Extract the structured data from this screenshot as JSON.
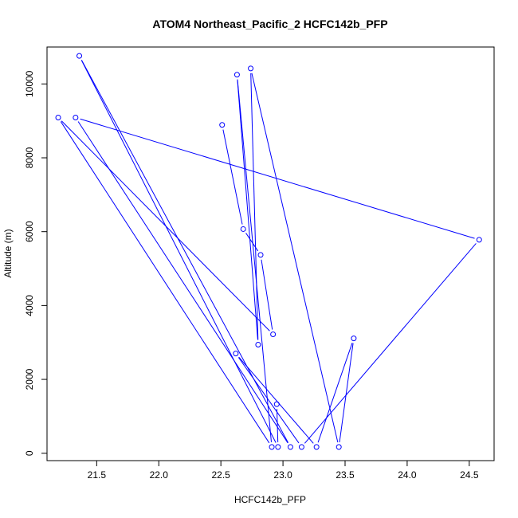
{
  "chart_data": {
    "type": "line",
    "title": "ATOM4 Northeast_Pacific_2 HCFC142b_PFP",
    "xlabel": "HCFC142b_PFP",
    "ylabel": "Altitude (m)",
    "xlim": [
      21.1,
      24.7
    ],
    "ylim": [
      -200,
      11000
    ],
    "x_ticks": [
      21.5,
      22.0,
      22.5,
      23.0,
      23.5,
      24.0,
      24.5
    ],
    "x_tick_labels": [
      "21.5",
      "22.0",
      "22.5",
      "23.0",
      "23.5",
      "24.0",
      "24.5"
    ],
    "y_ticks": [
      0,
      2000,
      4000,
      6000,
      8000,
      10000
    ],
    "y_tick_labels": [
      "0",
      "2000",
      "4000",
      "6000",
      "8000",
      "10000"
    ],
    "grid": false,
    "series": [
      {
        "color": "#0000ff",
        "marker": "open-circle",
        "points": [
          {
            "x": 22.51,
            "y": 8890
          },
          {
            "x": 22.68,
            "y": 6070
          },
          {
            "x": 22.82,
            "y": 5370
          },
          {
            "x": 22.92,
            "y": 3220
          },
          {
            "x": 21.19,
            "y": 9090
          },
          {
            "x": 22.91,
            "y": 170
          },
          {
            "x": 22.63,
            "y": 10250
          },
          {
            "x": 22.8,
            "y": 2940
          },
          {
            "x": 22.74,
            "y": 10420
          },
          {
            "x": 23.45,
            "y": 170
          },
          {
            "x": 23.57,
            "y": 3110
          },
          {
            "x": 23.27,
            "y": 170
          },
          {
            "x": 22.62,
            "y": 2700
          },
          {
            "x": 23.15,
            "y": 170
          },
          {
            "x": 24.58,
            "y": 5780
          },
          {
            "x": 21.33,
            "y": 9090
          },
          {
            "x": 23.06,
            "y": 170
          },
          {
            "x": 21.36,
            "y": 10760
          },
          {
            "x": 22.96,
            "y": 170
          },
          {
            "x": 22.95,
            "y": 1330
          }
        ]
      }
    ]
  }
}
